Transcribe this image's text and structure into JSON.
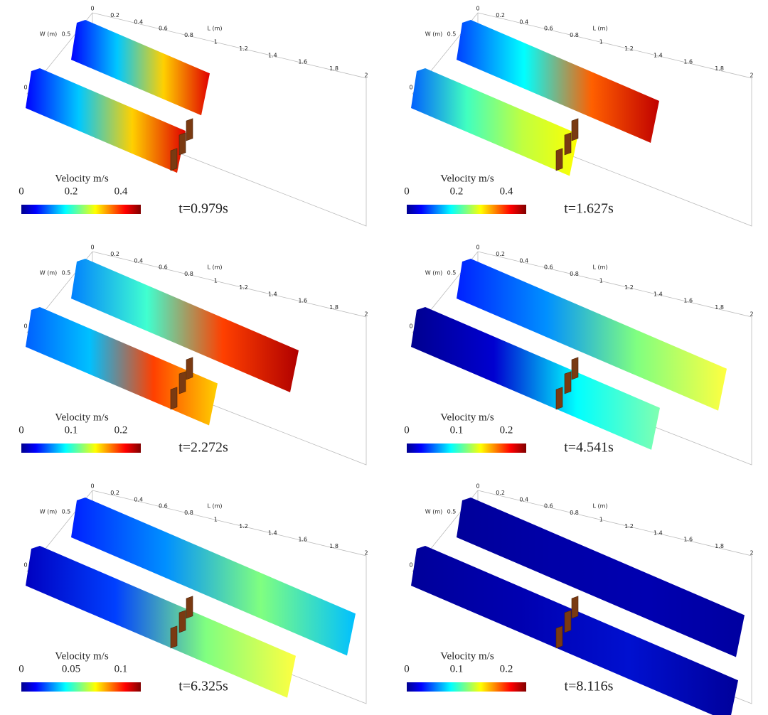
{
  "axes": {
    "length_label": "L (m)",
    "width_label": "W (m)",
    "length_ticks": [
      "0",
      "0.2",
      "0.4",
      "0.6",
      "0.8",
      "1",
      "1.2",
      "1.4",
      "1.6",
      "1.8",
      "2"
    ],
    "width_ticks": [
      "0.5",
      "0"
    ]
  },
  "panels": [
    {
      "time": "t=0.979s",
      "colorbar": {
        "title": "Velocity  m/s",
        "ticks": [
          "0",
          "0.2",
          "0.4"
        ]
      }
    },
    {
      "time": "t=1.627s",
      "colorbar": {
        "title": "Velocity  m/s",
        "ticks": [
          "0",
          "0.2",
          "0.4"
        ]
      }
    },
    {
      "time": "t=2.272s",
      "colorbar": {
        "title": "Velocity  m/s",
        "ticks": [
          "0",
          "0.1",
          "0.2"
        ]
      }
    },
    {
      "time": "t=4.541s",
      "colorbar": {
        "title": "Velocity  m/s",
        "ticks": [
          "0",
          "0.1",
          "0.2"
        ]
      }
    },
    {
      "time": "t=6.325s",
      "colorbar": {
        "title": "Velocity  m/s",
        "ticks": [
          "0",
          "0.05",
          "0.1"
        ]
      }
    },
    {
      "time": "t=8.116s",
      "colorbar": {
        "title": "Velocity  m/s",
        "ticks": [
          "0",
          "0.1",
          "0.2"
        ]
      }
    }
  ]
}
